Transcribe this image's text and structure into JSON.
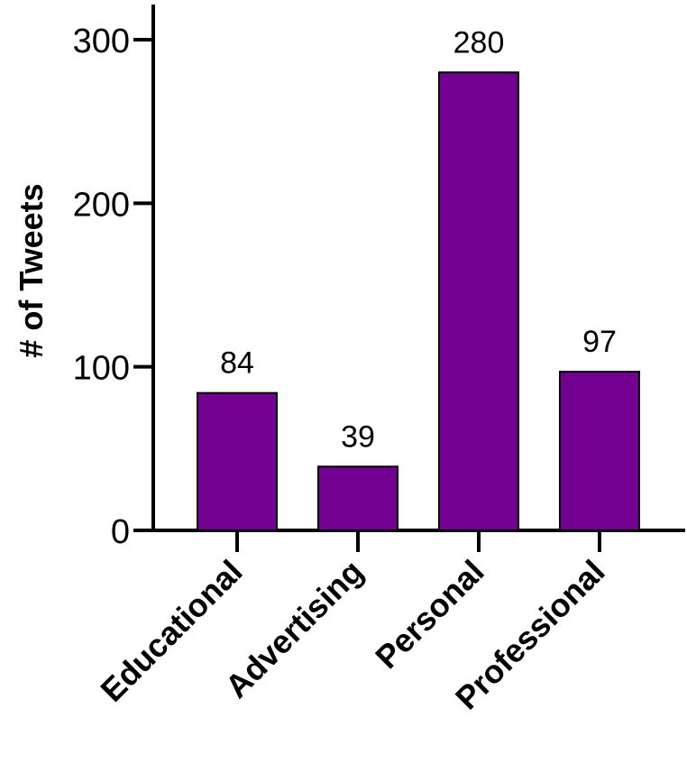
{
  "chart_data": {
    "type": "bar",
    "title": "",
    "xlabel": "",
    "ylabel": "# of Tweets",
    "categories": [
      "Educational",
      "Advertising",
      "Personal",
      "Professional"
    ],
    "values": [
      84,
      39,
      280,
      97
    ],
    "data_labels": [
      "84",
      "39",
      "280",
      "97"
    ],
    "ylim": [
      0,
      300
    ],
    "yticks": [
      0,
      100,
      200,
      300
    ],
    "ytick_labels": [
      "0",
      "100",
      "200",
      "300"
    ],
    "grid": false,
    "legend": "none",
    "bar_color": "#720091",
    "bar_edge_color": "#000000"
  }
}
